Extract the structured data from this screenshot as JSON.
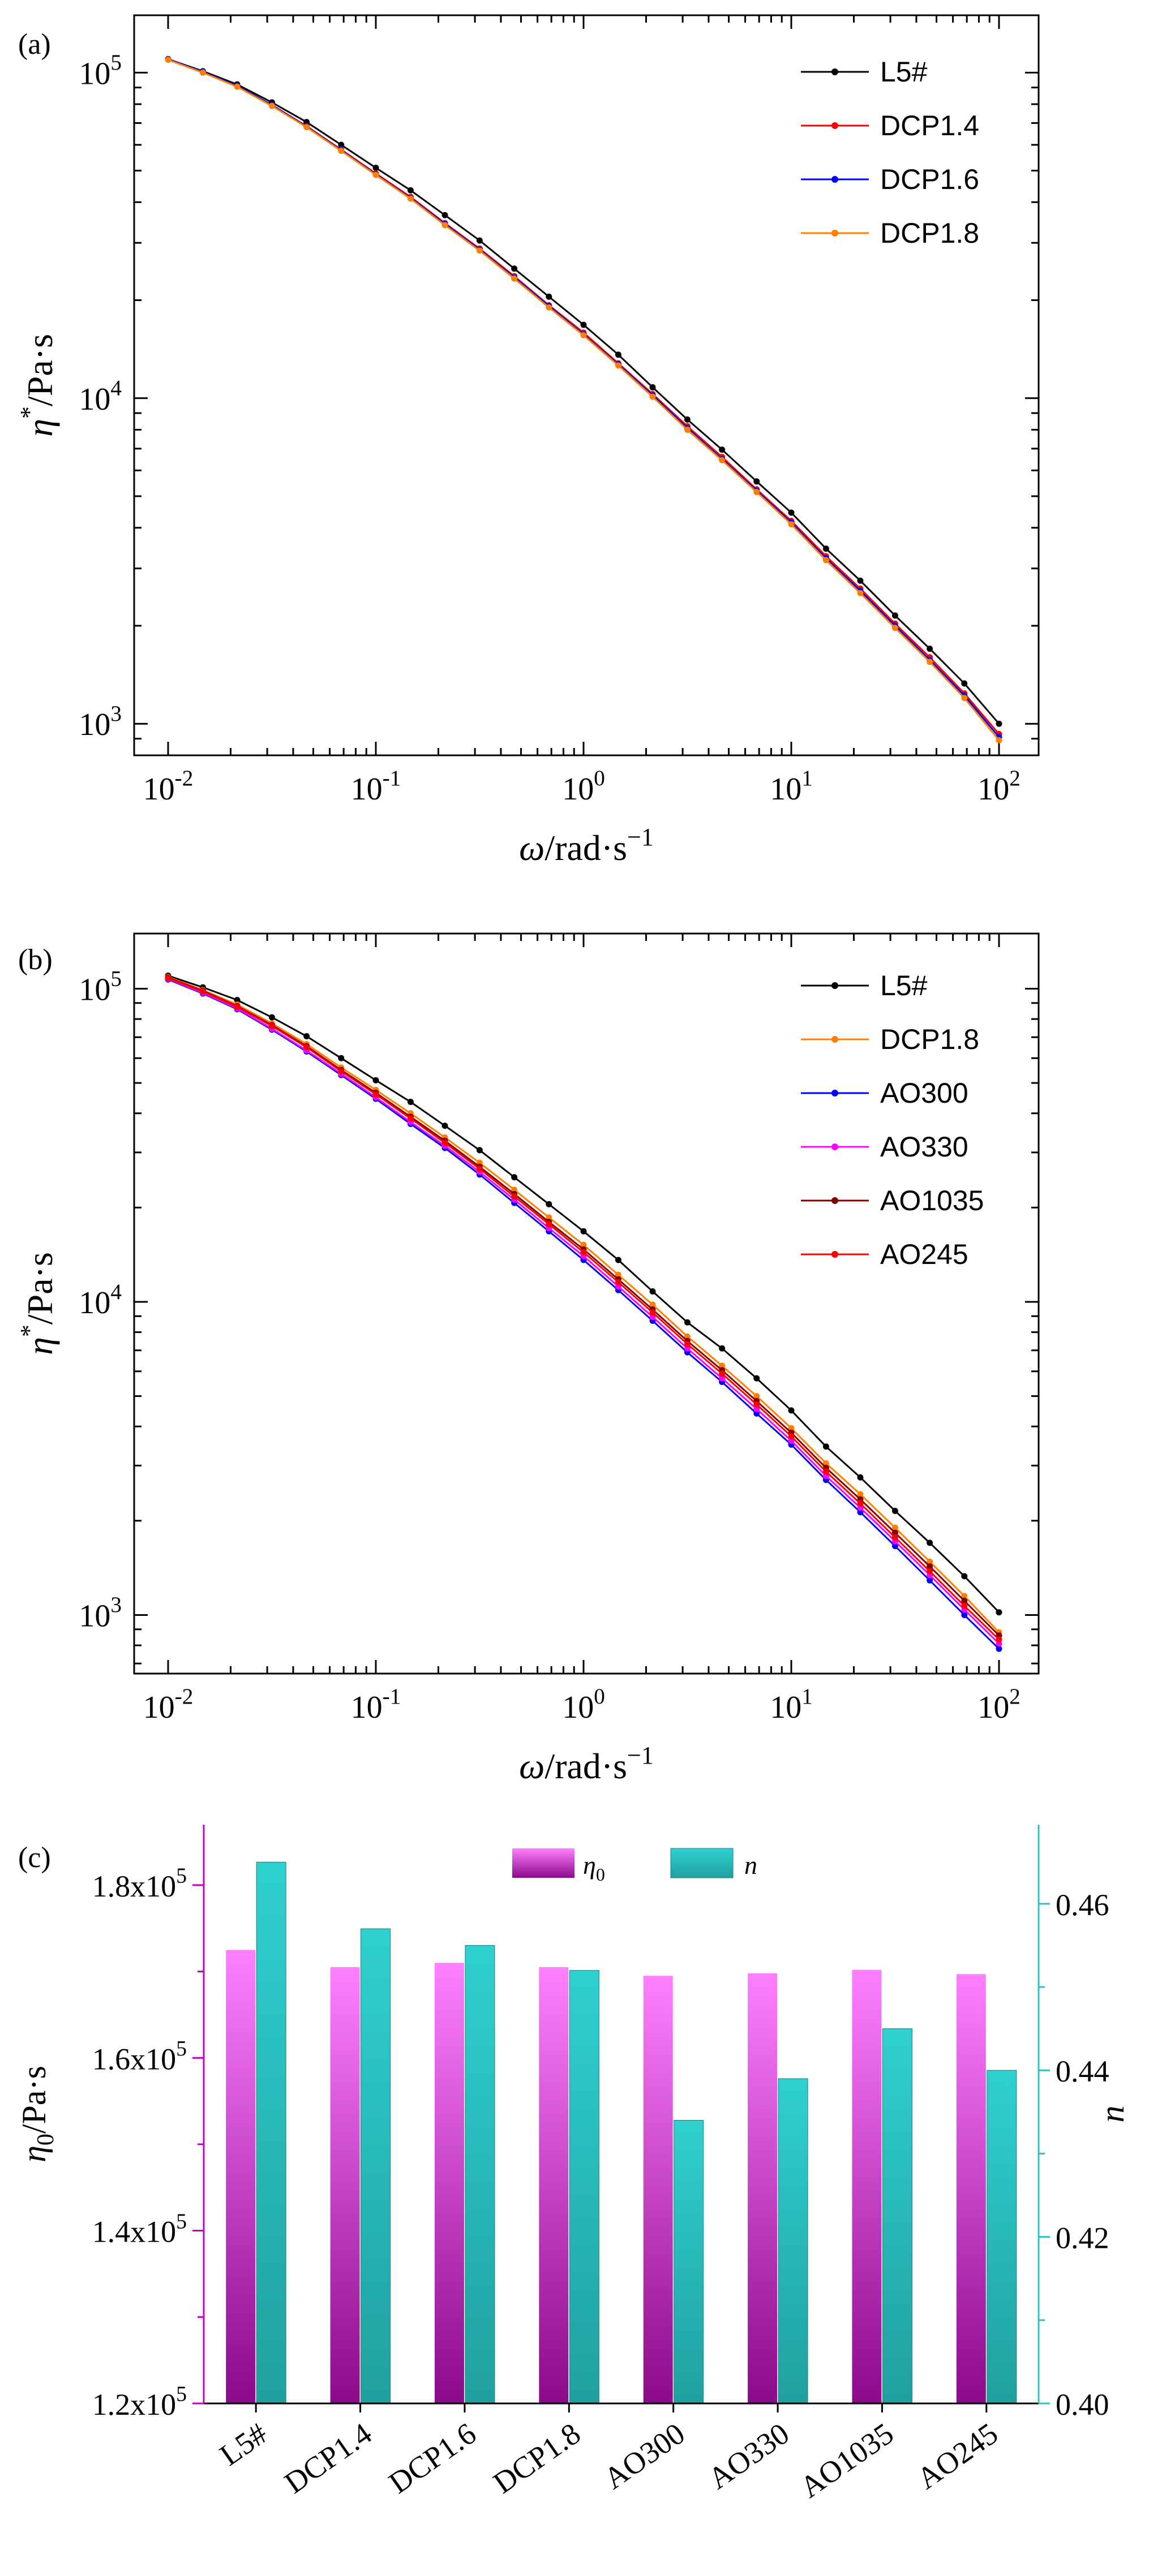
{
  "chart_data": [
    {
      "panel_label": "(a)",
      "type": "line",
      "xscale": "log",
      "yscale": "log",
      "xlim": [
        0.01,
        100
      ],
      "ylim": [
        800,
        150000
      ],
      "xlabel_sym": "ω",
      "xlabel_unit": "/rad·s",
      "xlabel_sup": "−1",
      "ylabel_sym": "η",
      "ylabel_sup": "*",
      "ylabel_unit": "/Pa·s",
      "x_ticks": [
        0.01,
        0.1,
        1,
        10,
        100
      ],
      "x_tick_labels": [
        {
          "base": "10",
          "exp": "-2"
        },
        {
          "base": "10",
          "exp": "-1"
        },
        {
          "base": "10",
          "exp": "0"
        },
        {
          "base": "10",
          "exp": "1"
        },
        {
          "base": "10",
          "exp": "2"
        }
      ],
      "y_ticks": [
        1000,
        10000,
        100000
      ],
      "y_tick_labels": [
        {
          "base": "10",
          "exp": "3"
        },
        {
          "base": "10",
          "exp": "4"
        },
        {
          "base": "10",
          "exp": "5"
        }
      ],
      "legend_position": "top-right",
      "x": [
        0.01,
        0.0147,
        0.0215,
        0.0316,
        0.0464,
        0.0681,
        0.1,
        0.147,
        0.215,
        0.316,
        0.464,
        0.681,
        1,
        1.47,
        2.15,
        3.16,
        4.64,
        6.81,
        10,
        14.7,
        21.5,
        31.6,
        46.4,
        68.1,
        100
      ],
      "series": [
        {
          "name": "L5#",
          "color": "#000000",
          "values": [
            110000,
            101000,
            92000,
            81000,
            70500,
            60000,
            51000,
            43500,
            36500,
            30500,
            25000,
            20500,
            16800,
            13600,
            10800,
            8600,
            6950,
            5550,
            4450,
            3450,
            2750,
            2150,
            1700,
            1330,
            1000
          ]
        },
        {
          "name": "DCP1.4",
          "color": "#ff0000",
          "values": [
            110000,
            100500,
            91000,
            79500,
            68500,
            58000,
            49000,
            41500,
            34500,
            28800,
            23700,
            19300,
            15900,
            12800,
            10300,
            8200,
            6600,
            5250,
            4200,
            3270,
            2600,
            2030,
            1600,
            1240,
            930
          ]
        },
        {
          "name": "DCP1.6",
          "color": "#0000ff",
          "values": [
            110000,
            100500,
            91000,
            79500,
            68300,
            57800,
            48700,
            41200,
            34300,
            28600,
            23500,
            19200,
            15700,
            12700,
            10200,
            8100,
            6500,
            5200,
            4150,
            3220,
            2560,
            2000,
            1570,
            1220,
            910
          ]
        },
        {
          "name": "DCP1.8",
          "color": "#ff8000",
          "values": [
            109500,
            100000,
            90500,
            79000,
            68000,
            57500,
            48500,
            41000,
            34000,
            28400,
            23300,
            19000,
            15600,
            12600,
            10100,
            8000,
            6450,
            5150,
            4100,
            3180,
            2520,
            1970,
            1550,
            1200,
            890
          ]
        }
      ]
    },
    {
      "panel_label": "(b)",
      "type": "line",
      "xscale": "log",
      "yscale": "log",
      "xlim": [
        0.01,
        100
      ],
      "ylim": [
        650,
        150000
      ],
      "xlabel_sym": "ω",
      "xlabel_unit": "/rad·s",
      "xlabel_sup": "−1",
      "ylabel_sym": "η",
      "ylabel_sup": "*",
      "ylabel_unit": "/Pa·s",
      "x_ticks": [
        0.01,
        0.1,
        1,
        10,
        100
      ],
      "x_tick_labels": [
        {
          "base": "10",
          "exp": "-2"
        },
        {
          "base": "10",
          "exp": "-1"
        },
        {
          "base": "10",
          "exp": "0"
        },
        {
          "base": "10",
          "exp": "1"
        },
        {
          "base": "10",
          "exp": "2"
        }
      ],
      "y_ticks": [
        1000,
        10000,
        100000
      ],
      "y_tick_labels": [
        {
          "base": "10",
          "exp": "3"
        },
        {
          "base": "10",
          "exp": "4"
        },
        {
          "base": "10",
          "exp": "5"
        }
      ],
      "legend_position": "top-right",
      "x": [
        0.01,
        0.0147,
        0.0215,
        0.0316,
        0.0464,
        0.0681,
        0.1,
        0.147,
        0.215,
        0.316,
        0.464,
        0.681,
        1,
        1.47,
        2.15,
        3.16,
        4.64,
        6.81,
        10,
        14.7,
        21.5,
        31.6,
        46.4,
        68.1,
        100
      ],
      "series": [
        {
          "name": "L5#",
          "color": "#000000",
          "values": [
            110000,
            101000,
            92000,
            81000,
            70500,
            60000,
            51000,
            43500,
            36500,
            30500,
            25000,
            20500,
            16800,
            13600,
            10800,
            8600,
            7100,
            5700,
            4500,
            3450,
            2750,
            2150,
            1700,
            1330,
            1020
          ]
        },
        {
          "name": "DCP1.8",
          "color": "#ff8000",
          "values": [
            109000,
            99000,
            89000,
            77500,
            66500,
            56000,
            47500,
            40000,
            33500,
            27800,
            22800,
            18600,
            15200,
            12200,
            9800,
            7750,
            6250,
            5000,
            3950,
            3050,
            2430,
            1900,
            1480,
            1150,
            880
          ]
        },
        {
          "name": "AO300",
          "color": "#0000ff",
          "values": [
            107000,
            96500,
            86000,
            74000,
            63000,
            53000,
            44500,
            37000,
            31000,
            25500,
            20700,
            16800,
            13600,
            10900,
            8700,
            6900,
            5550,
            4400,
            3500,
            2700,
            2130,
            1660,
            1290,
            1000,
            780
          ]
        },
        {
          "name": "AO330",
          "color": "#ff00ff",
          "values": [
            107500,
            97000,
            86500,
            74500,
            63500,
            53500,
            45000,
            37500,
            31500,
            26000,
            21200,
            17200,
            14000,
            11200,
            8950,
            7100,
            5700,
            4550,
            3600,
            2780,
            2200,
            1720,
            1340,
            1040,
            810
          ]
        },
        {
          "name": "AO1035",
          "color": "#800000",
          "values": [
            108500,
            98500,
            88000,
            76500,
            65500,
            55000,
            46500,
            39000,
            32700,
            27000,
            22100,
            18000,
            14700,
            11800,
            9450,
            7500,
            6050,
            4820,
            3820,
            2950,
            2340,
            1830,
            1430,
            1110,
            860
          ]
        },
        {
          "name": "AO245",
          "color": "#ff0000",
          "values": [
            108000,
            98000,
            87500,
            76000,
            65000,
            54500,
            46000,
            38500,
            32200,
            26600,
            21700,
            17700,
            14400,
            11550,
            9250,
            7330,
            5900,
            4700,
            3720,
            2870,
            2270,
            1770,
            1380,
            1070,
            835
          ]
        }
      ]
    },
    {
      "panel_label": "(c)",
      "type": "bar",
      "categories": [
        "L5#",
        "DCP1.4",
        "DCP1.6",
        "DCP1.8",
        "AO300",
        "AO330",
        "AO1035",
        "AO245"
      ],
      "ylabel_sym": "η",
      "ylabel_sub": "0",
      "ylabel_unit": "/Pa·s",
      "y2label": "n",
      "ylim": [
        120000,
        187000
      ],
      "y2lim": [
        0.4,
        0.4695
      ],
      "y_ticks": [
        120000,
        140000,
        160000,
        180000
      ],
      "y_tick_labels": [
        {
          "base": "1.2x10",
          "exp": "5"
        },
        {
          "base": "1.4x10",
          "exp": "5"
        },
        {
          "base": "1.6x10",
          "exp": "5"
        },
        {
          "base": "1.8x10",
          "exp": "5"
        }
      ],
      "y2_ticks": [
        0.4,
        0.42,
        0.44,
        0.46
      ],
      "y2_tick_labels": [
        "0.40",
        "0.42",
        "0.44",
        "0.46"
      ],
      "legend_position": "top-center",
      "series": [
        {
          "name_sym": "η",
          "name_sub": "0",
          "axis": "left",
          "color_top": "#ff80ff",
          "color_bottom": "#8a0a8a",
          "values": [
            172500,
            170500,
            171000,
            170500,
            169500,
            169800,
            170200,
            169700
          ]
        },
        {
          "name": "n",
          "axis": "right",
          "color_top": "#30d0d0",
          "color_bottom": "#20a0a0",
          "values": [
            0.465,
            0.457,
            0.455,
            0.452,
            0.434,
            0.439,
            0.445,
            0.44
          ]
        }
      ],
      "axis_colors": {
        "left": "#c000c0",
        "right": "#30c0c0"
      }
    }
  ]
}
